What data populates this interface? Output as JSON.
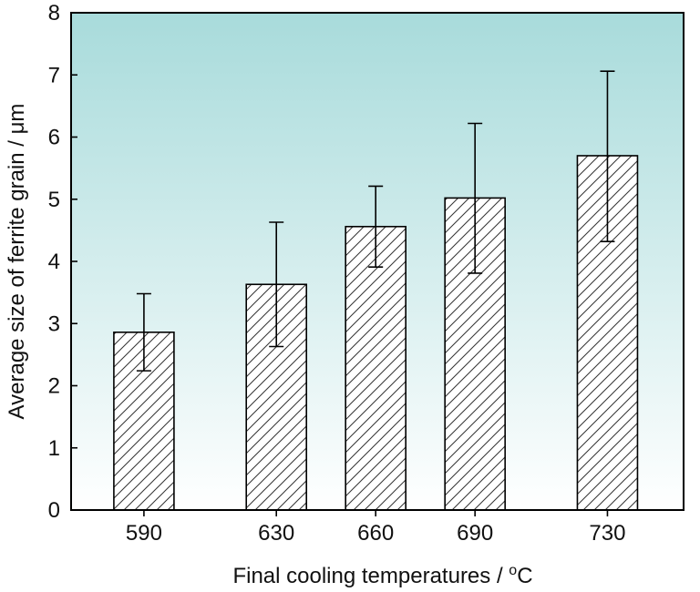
{
  "chart_data": {
    "type": "bar",
    "title": "",
    "xlabel": "Final cooling temperatures / °C",
    "xlabel_parts": {
      "prefix": "Final cooling temperatures / ",
      "degree": "o",
      "unit": "C"
    },
    "ylabel": "Average size of ferrite grain / μm",
    "x": [
      590,
      630,
      660,
      690,
      730
    ],
    "categories": [
      "590",
      "630",
      "660",
      "690",
      "730"
    ],
    "values": [
      2.86,
      3.63,
      4.56,
      5.02,
      5.7
    ],
    "error_low": [
      2.24,
      2.63,
      3.91,
      3.81,
      4.32
    ],
    "error_high": [
      3.48,
      4.63,
      5.21,
      6.22,
      7.06
    ],
    "ylim": [
      0,
      8
    ],
    "yticks": [
      0,
      1,
      2,
      3,
      4,
      5,
      6,
      7,
      8
    ],
    "xlim": [
      568,
      753
    ],
    "bar_pattern": "diagonal-hatch",
    "grid": false,
    "legend": "none",
    "background_gradient": {
      "top": "#a8dbdb",
      "bottom": "#ffffff"
    },
    "colors": {
      "bar_fill": "#ffffff",
      "hatch": "#333333",
      "outline": "#000000",
      "error_bar": "#000000"
    }
  }
}
